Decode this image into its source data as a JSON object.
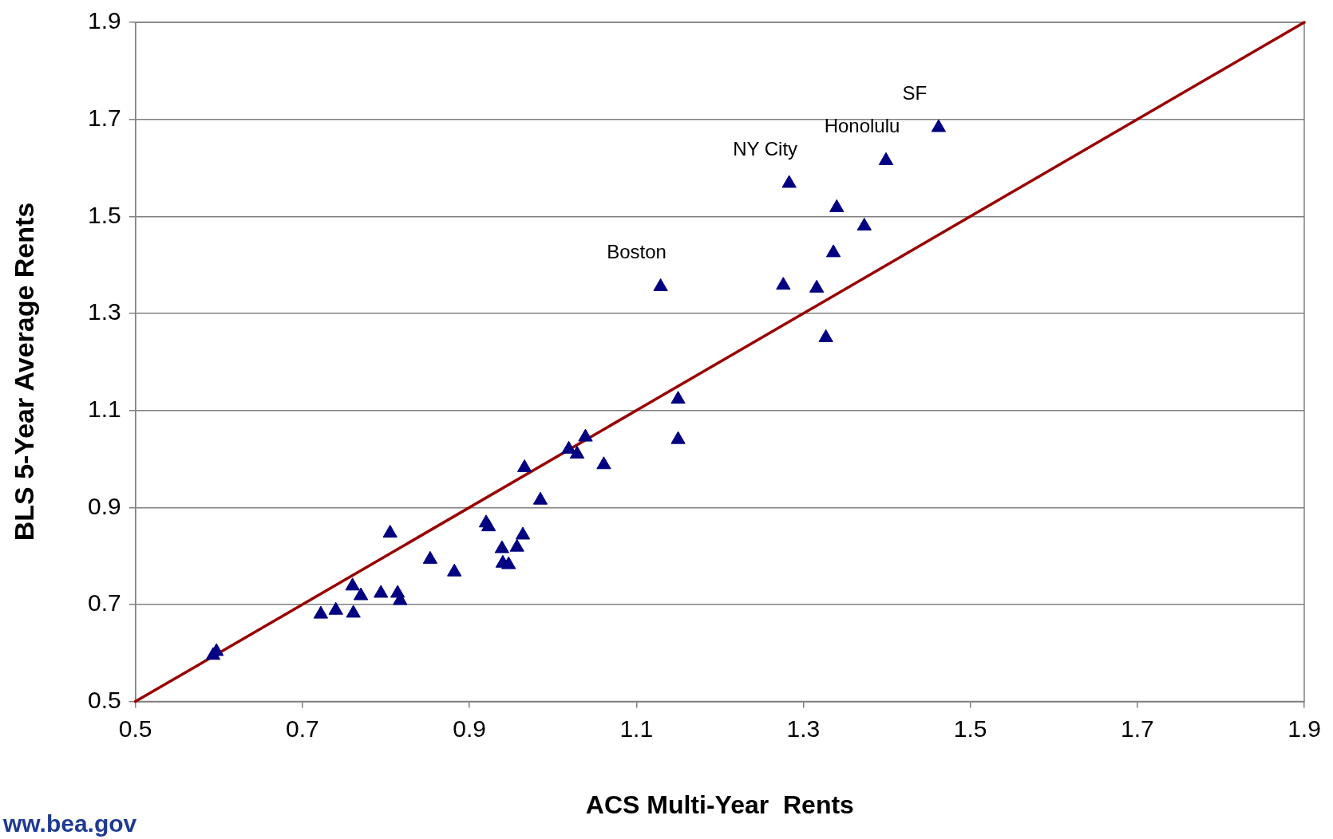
{
  "chart_data": {
    "type": "scatter",
    "xlabel": "ACS Multi-Year  Rents",
    "ylabel": "BLS 5-Year Average Rents",
    "xlim": [
      0.5,
      1.9
    ],
    "xticks": [
      0.5,
      0.7,
      0.9,
      1.1,
      1.3,
      1.5,
      1.7,
      1.9
    ],
    "ylim": [
      0.5,
      1.9
    ],
    "yticks": [
      0.5,
      0.7,
      0.9,
      1.1,
      1.3,
      1.5,
      1.7,
      1.9
    ],
    "grid": "y",
    "legend": false,
    "marker": "triangle",
    "series": [
      {
        "type": "scatter",
        "color": "#000080",
        "x": [
          0.593,
          0.597,
          0.722,
          0.74,
          0.76,
          0.761,
          0.77,
          0.794,
          0.805,
          0.814,
          0.817,
          0.853,
          0.882,
          0.92,
          0.923,
          0.939,
          0.94,
          0.947,
          0.957,
          0.964,
          0.966,
          0.985,
          1.019,
          1.029,
          1.039,
          1.061,
          1.129,
          1.15,
          1.15,
          1.276,
          1.283,
          1.316,
          1.327,
          1.336,
          1.34,
          1.373,
          1.399,
          1.462
        ],
        "values": [
          0.595,
          0.603,
          0.68,
          0.688,
          0.738,
          0.682,
          0.718,
          0.723,
          0.847,
          0.723,
          0.708,
          0.793,
          0.767,
          0.868,
          0.86,
          0.815,
          0.785,
          0.782,
          0.818,
          0.843,
          0.982,
          0.915,
          1.02,
          1.01,
          1.045,
          0.988,
          1.355,
          1.123,
          1.04,
          1.358,
          1.568,
          1.352,
          1.25,
          1.425,
          1.518,
          1.48,
          1.615,
          1.683
        ]
      },
      {
        "type": "line",
        "color": "#990000",
        "marker": "none",
        "line_style": "solid",
        "x": [
          0.5,
          1.9
        ],
        "values": [
          0.5,
          1.9
        ]
      }
    ],
    "annotations": [
      {
        "text": "SF",
        "x": 1.462,
        "y": 1.683
      },
      {
        "text": "Honolulu",
        "x": 1.399,
        "y": 1.615
      },
      {
        "text": "NY City",
        "x": 1.283,
        "y": 1.568
      },
      {
        "text": "Boston",
        "x": 1.129,
        "y": 1.355
      },
      "ww.bea.gov"
    ]
  }
}
